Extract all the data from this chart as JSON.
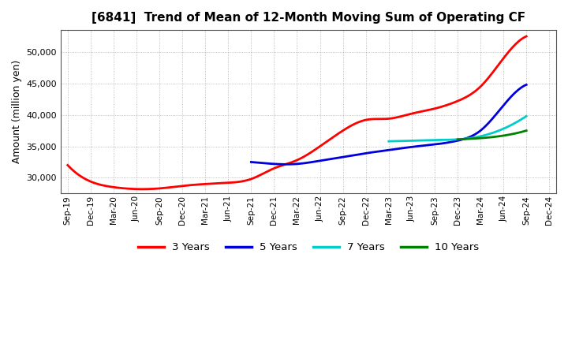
{
  "title": "[6841]  Trend of Mean of 12-Month Moving Sum of Operating CF",
  "ylabel": "Amount (million yen)",
  "background_color": "#ffffff",
  "plot_bg_color": "#ffffff",
  "grid_color": "#999999",
  "x_labels": [
    "Sep-19",
    "Dec-19",
    "Mar-20",
    "Jun-20",
    "Sep-20",
    "Dec-20",
    "Mar-21",
    "Jun-21",
    "Sep-21",
    "Dec-21",
    "Mar-22",
    "Jun-22",
    "Sep-22",
    "Dec-22",
    "Mar-23",
    "Jun-23",
    "Sep-23",
    "Dec-23",
    "Mar-24",
    "Jun-24",
    "Sep-24",
    "Dec-24"
  ],
  "ylim": [
    27500,
    53500
  ],
  "yticks": [
    30000,
    35000,
    40000,
    45000,
    50000
  ],
  "series": {
    "3yr": {
      "color": "#ff0000",
      "label": "3 Years",
      "indices": [
        0,
        1,
        2,
        3,
        4,
        5,
        6,
        7,
        8,
        9,
        10,
        11,
        12,
        13,
        14,
        15,
        16,
        17,
        18,
        19,
        20
      ],
      "values": [
        32000,
        29400,
        28500,
        28200,
        28300,
        28700,
        29000,
        29200,
        29800,
        31500,
        32800,
        35000,
        37500,
        39200,
        39400,
        40200,
        41000,
        42200,
        44500,
        49000,
        52500
      ]
    },
    "5yr": {
      "color": "#0000dd",
      "label": "5 Years",
      "indices": [
        8,
        9,
        10,
        11,
        12,
        13,
        14,
        15,
        16,
        17,
        18,
        19,
        20
      ],
      "values": [
        32500,
        32200,
        32200,
        32700,
        33300,
        33900,
        34400,
        34900,
        35300,
        35900,
        37500,
        41500,
        44800
      ]
    },
    "7yr": {
      "color": "#00cccc",
      "label": "7 Years",
      "indices": [
        14,
        15,
        16,
        17,
        18,
        19,
        20
      ],
      "values": [
        35800,
        35900,
        36000,
        36100,
        36600,
        37800,
        39800
      ]
    },
    "10yr": {
      "color": "#008000",
      "label": "10 Years",
      "indices": [
        17,
        18,
        19,
        20
      ],
      "values": [
        36100,
        36300,
        36700,
        37500
      ]
    }
  },
  "legend_entries": [
    "3 Years",
    "5 Years",
    "7 Years",
    "10 Years"
  ],
  "legend_colors": [
    "#ff0000",
    "#0000dd",
    "#00cccc",
    "#008000"
  ]
}
